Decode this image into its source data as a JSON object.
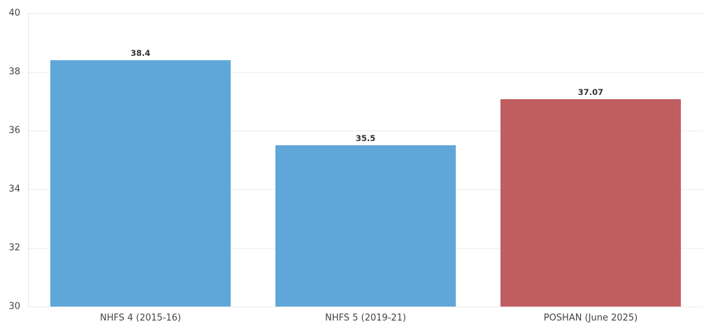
{
  "chart_data": {
    "type": "bar",
    "title": "",
    "xlabel": "",
    "ylabel": "",
    "categories": [
      "NHFS 4 (2015-16)",
      "NHFS 5 (2019-21)",
      "POSHAN (June 2025)"
    ],
    "values": [
      38.4,
      35.5,
      37.07
    ],
    "value_labels": [
      "38.4",
      "35.5",
      "37.07"
    ],
    "bar_colors": [
      "#5fa7d9",
      "#5fa7d9",
      "#c05d60"
    ],
    "ylim": [
      30,
      40
    ],
    "yticks": [
      30,
      32,
      34,
      36,
      38,
      40
    ],
    "ytick_labels": [
      "30",
      "32",
      "34",
      "36",
      "38",
      "40"
    ],
    "grid": true,
    "legend": "none"
  }
}
